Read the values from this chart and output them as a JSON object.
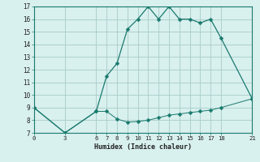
{
  "xlabel": "Humidex (Indice chaleur)",
  "line1_x": [
    0,
    3,
    6,
    7,
    8,
    9,
    10,
    11,
    12,
    13,
    14,
    15,
    16,
    17,
    18,
    21
  ],
  "line1_y": [
    9,
    7,
    8.7,
    11.5,
    12.5,
    15.2,
    16.0,
    17.0,
    16.0,
    17.0,
    16.0,
    16.0,
    15.7,
    16.0,
    14.5,
    9.7
  ],
  "line2_x": [
    0,
    3,
    6,
    7,
    8,
    9,
    10,
    11,
    12,
    13,
    14,
    15,
    16,
    17,
    18,
    21
  ],
  "line2_y": [
    9,
    7,
    8.7,
    8.7,
    8.1,
    7.85,
    7.9,
    8.0,
    8.2,
    8.4,
    8.5,
    8.6,
    8.7,
    8.8,
    9.0,
    9.7
  ],
  "line_color": "#1a7a6e",
  "bg_color": "#d8f0ee",
  "grid_color": "#a8ccc8",
  "xlim": [
    0,
    21
  ],
  "ylim": [
    7,
    17
  ],
  "xticks": [
    0,
    3,
    6,
    7,
    8,
    9,
    10,
    11,
    12,
    13,
    14,
    15,
    16,
    17,
    18,
    21
  ],
  "yticks": [
    7,
    8,
    9,
    10,
    11,
    12,
    13,
    14,
    15,
    16,
    17
  ],
  "markersize": 2.5
}
